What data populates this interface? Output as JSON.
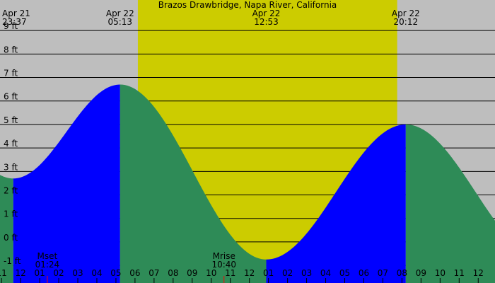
{
  "chart_data": {
    "type": "area",
    "title": "Brazos Drawbridge, Napa River, California",
    "y_unit": "ft",
    "ylim": [
      -1.75,
      10.3
    ],
    "yticks": [
      -1,
      0,
      1,
      2,
      3,
      4,
      5,
      6,
      7,
      8,
      9
    ],
    "ytick_labels": [
      "-1 ft",
      "0 ft",
      "1 ft",
      "2 ft",
      "3 ft",
      "4 ft",
      "5 ft",
      "6 ft",
      "7 ft",
      "8 ft",
      "9 ft"
    ],
    "x_range_hours": [
      -1.08,
      24.88
    ],
    "x_hour_ticks": [
      -1,
      0,
      1,
      2,
      3,
      4,
      5,
      6,
      7,
      8,
      9,
      10,
      11,
      12,
      13,
      14,
      15,
      16,
      17,
      18,
      19,
      20,
      21,
      22,
      23,
      24
    ],
    "x_hour_labels": [
      "11",
      "12",
      "01",
      "02",
      "03",
      "04",
      "05",
      "06",
      "07",
      "08",
      "09",
      "10",
      "11",
      "12",
      "01",
      "02",
      "03",
      "04",
      "05",
      "06",
      "07",
      "08",
      "09",
      "10",
      "11",
      "12"
    ],
    "tide_extremes": [
      {
        "date": "Apr 21",
        "time": "23:37",
        "hour": -0.383,
        "height_ft": 2.7,
        "type": "low"
      },
      {
        "date": "Apr 22",
        "time": "05:13",
        "hour": 5.217,
        "height_ft": 6.7,
        "type": "high"
      },
      {
        "date": "Apr 22",
        "time": "12:53",
        "hour": 12.883,
        "height_ft": -0.75,
        "type": "low"
      },
      {
        "date": "Apr 22",
        "time": "20:12",
        "hour": 20.2,
        "height_ft": 5.0,
        "type": "high"
      }
    ],
    "daylight_hours": [
      6.15,
      19.75
    ],
    "events": [
      {
        "label": "Mset",
        "time": "01:24",
        "hour": 1.4
      },
      {
        "label": "Mrise",
        "time": "10:40",
        "hour": 10.667
      }
    ],
    "colors": {
      "background": "#bebebe",
      "daylight": "#cccc00",
      "rising": "#0000ff",
      "falling": "#2e8b57",
      "gridline": "#000000"
    }
  }
}
